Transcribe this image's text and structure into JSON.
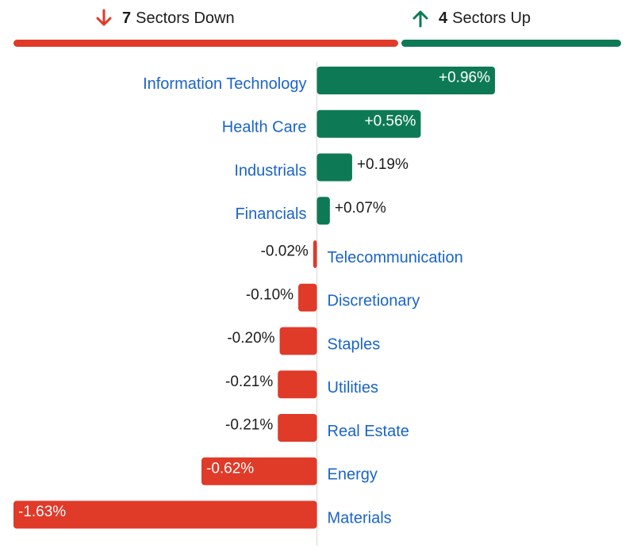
{
  "summary": {
    "down": {
      "count": "7",
      "label": "Sectors Down",
      "icon": "arrow-down-icon",
      "color": "#e03a29"
    },
    "up": {
      "count": "4",
      "label": "Sectors Up",
      "icon": "arrow-up-icon",
      "color": "#0e7a55"
    }
  },
  "colors": {
    "positive": "#0e7a55",
    "negative": "#e03a29",
    "label": "#1a64c9",
    "axis": "#d9d9d9"
  },
  "chart_data": {
    "type": "bar",
    "orientation": "horizontal-diverging",
    "unit": "%",
    "categories": [
      "Information Technology",
      "Health Care",
      "Industrials",
      "Financials",
      "Telecommunication",
      "Discretionary",
      "Staples",
      "Utilities",
      "Real Estate",
      "Energy",
      "Materials"
    ],
    "values": [
      0.96,
      0.56,
      0.19,
      0.07,
      -0.02,
      -0.1,
      -0.2,
      -0.21,
      -0.21,
      -0.62,
      -1.63
    ],
    "labels": [
      "+0.96%",
      "+0.56%",
      "+0.19%",
      "+0.07%",
      "-0.02%",
      "-0.10%",
      "-0.20%",
      "-0.21%",
      "-0.21%",
      "-0.62%",
      "-1.63%"
    ],
    "xlim": [
      -1.63,
      0.96
    ]
  }
}
